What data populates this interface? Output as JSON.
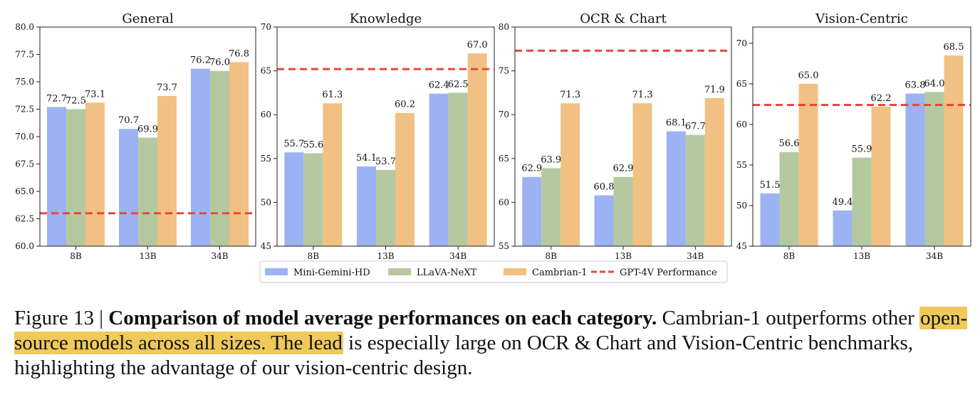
{
  "chart_data": [
    {
      "type": "bar",
      "title": "General",
      "categories": [
        "8B",
        "13B",
        "34B"
      ],
      "series": [
        {
          "name": "Mini-Gemini-HD",
          "values": [
            72.7,
            70.7,
            76.2
          ]
        },
        {
          "name": "LLaVA-NeXT",
          "values": [
            72.5,
            69.9,
            76.0
          ]
        },
        {
          "name": "Cambrian-1",
          "values": [
            73.1,
            73.7,
            76.8
          ]
        }
      ],
      "reference_line": {
        "name": "GPT-4V Performance",
        "value": 63.0
      },
      "ylim": [
        60,
        80
      ],
      "yticks": [
        "60.0",
        "62.5",
        "65.0",
        "67.5",
        "70.0",
        "72.5",
        "75.0",
        "77.5",
        "80.0"
      ],
      "xlabel": "",
      "ylabel": ""
    },
    {
      "type": "bar",
      "title": "Knowledge",
      "categories": [
        "8B",
        "13B",
        "34B"
      ],
      "series": [
        {
          "name": "Mini-Gemini-HD",
          "values": [
            55.7,
            54.1,
            62.4
          ]
        },
        {
          "name": "LLaVA-NeXT",
          "values": [
            55.6,
            53.7,
            62.5
          ]
        },
        {
          "name": "Cambrian-1",
          "values": [
            61.3,
            60.2,
            67.0
          ]
        }
      ],
      "reference_line": {
        "name": "GPT-4V Performance",
        "value": 65.2
      },
      "ylim": [
        45,
        70
      ],
      "yticks": [
        "45",
        "50",
        "55",
        "60",
        "65",
        "70"
      ],
      "xlabel": "",
      "ylabel": ""
    },
    {
      "type": "bar",
      "title": "OCR & Chart",
      "categories": [
        "8B",
        "13B",
        "34B"
      ],
      "series": [
        {
          "name": "Mini-Gemini-HD",
          "values": [
            62.9,
            60.8,
            68.1
          ]
        },
        {
          "name": "LLaVA-NeXT",
          "values": [
            63.9,
            62.9,
            67.7
          ]
        },
        {
          "name": "Cambrian-1",
          "values": [
            71.3,
            71.3,
            71.9
          ]
        }
      ],
      "reference_line": {
        "name": "GPT-4V Performance",
        "value": 77.3
      },
      "ylim": [
        55,
        80
      ],
      "yticks": [
        "55",
        "60",
        "65",
        "70",
        "75",
        "80"
      ],
      "xlabel": "",
      "ylabel": ""
    },
    {
      "type": "bar",
      "title": "Vision-Centric",
      "categories": [
        "8B",
        "13B",
        "34B"
      ],
      "series": [
        {
          "name": "Mini-Gemini-HD",
          "values": [
            51.5,
            49.4,
            63.8
          ]
        },
        {
          "name": "LLaVA-NeXT",
          "values": [
            56.6,
            55.9,
            64.0
          ]
        },
        {
          "name": "Cambrian-1",
          "values": [
            65.0,
            62.2,
            68.5
          ]
        }
      ],
      "reference_line": {
        "name": "GPT-4V Performance",
        "value": 62.4
      },
      "ylim": [
        45,
        72
      ],
      "yticks": [
        "45",
        "50",
        "55",
        "60",
        "65",
        "70"
      ],
      "xlabel": "",
      "ylabel": ""
    }
  ],
  "legend": {
    "position": "bottom-center",
    "entries": [
      {
        "label": "Mini-Gemini-HD",
        "kind": "bar",
        "color": "#9db2f2"
      },
      {
        "label": "LLaVA-NeXT",
        "kind": "bar",
        "color": "#b5c9a1"
      },
      {
        "label": "Cambrian-1",
        "kind": "bar",
        "color": "#f0c183"
      },
      {
        "label": "GPT-4V Performance",
        "kind": "line",
        "color": "#e8473c"
      }
    ]
  },
  "colors": {
    "Mini-Gemini-HD": "#9db2f2",
    "LLaVA-NeXT": "#b5c9a1",
    "Cambrian-1": "#f0c183",
    "reference_line": "#e8473c",
    "caption_highlight": "#f0c95a"
  },
  "caption": {
    "figure_label": "Figure 13 |",
    "bold_title": "Comparison of model average performances on each category.",
    "text_a": "Cambrian-1 outperforms other",
    "highlighted": "open-source models across all sizes. The lead",
    "text_b": "is especially large on OCR & Chart and Vision-Centric benchmarks, highlighting the advantage of our vision-centric design."
  }
}
